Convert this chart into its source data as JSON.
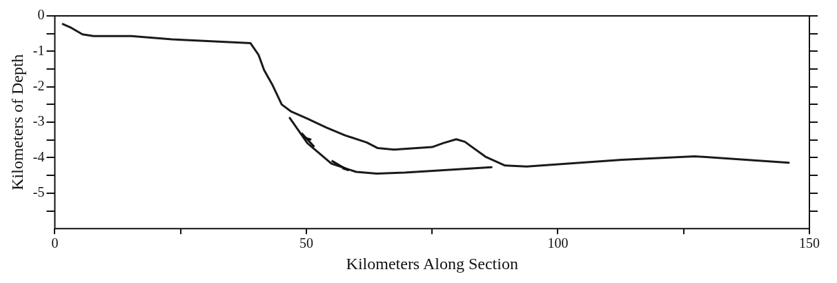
{
  "chart_data": {
    "type": "line",
    "xlabel": "Kilometers Along Section",
    "ylabel": "Kilometers of Depth",
    "xlim": [
      0,
      150
    ],
    "ylim": [
      -6,
      0
    ],
    "xticks": [
      0,
      {
        "value": 25,
        "label": null
      },
      50,
      {
        "value": 75,
        "label": null
      },
      100,
      {
        "value": 125,
        "label": null
      },
      150
    ],
    "yticks": [
      0,
      {
        "value": -0.5,
        "label": null
      },
      -1,
      {
        "value": -1.5,
        "label": null
      },
      -2,
      {
        "value": -2.5,
        "label": null
      },
      -3,
      {
        "value": -3.5,
        "label": null
      },
      -4,
      {
        "value": -4.5,
        "label": null
      },
      -5,
      {
        "value": -5.5,
        "label": null
      }
    ],
    "grid": false,
    "legend": false,
    "marker": "none",
    "line_style": "solid",
    "series": [
      {
        "color": "#1a1a1a",
        "x": [
          1.6,
          3.3,
          5.5,
          7.7,
          15.2,
          23.3,
          38.9,
          40.5,
          41.6,
          43.2,
          45.1,
          47.0,
          50.2,
          54.0,
          57.7,
          62.0,
          64.2,
          67.4,
          75.0,
          77.2,
          79.8,
          81.5,
          85.7,
          89.5,
          93.8,
          112.7,
          127.2,
          145.9
        ],
        "values": [
          -0.23,
          -0.34,
          -0.52,
          -0.57,
          -0.57,
          -0.66,
          -0.77,
          -1.1,
          -1.53,
          -1.93,
          -2.5,
          -2.7,
          -2.9,
          -3.15,
          -3.37,
          -3.57,
          -3.73,
          -3.77,
          -3.7,
          -3.59,
          -3.48,
          -3.55,
          -3.98,
          -4.22,
          -4.25,
          -4.06,
          -3.96,
          -4.14
        ]
      },
      {
        "color": "#1a1a1a",
        "x": [
          46.7,
          50.2,
          55.0,
          59.9,
          64.0,
          69.6,
          86.8
        ],
        "values": [
          -2.88,
          -3.59,
          -4.17,
          -4.4,
          -4.45,
          -4.42,
          -4.27
        ]
      }
    ]
  }
}
